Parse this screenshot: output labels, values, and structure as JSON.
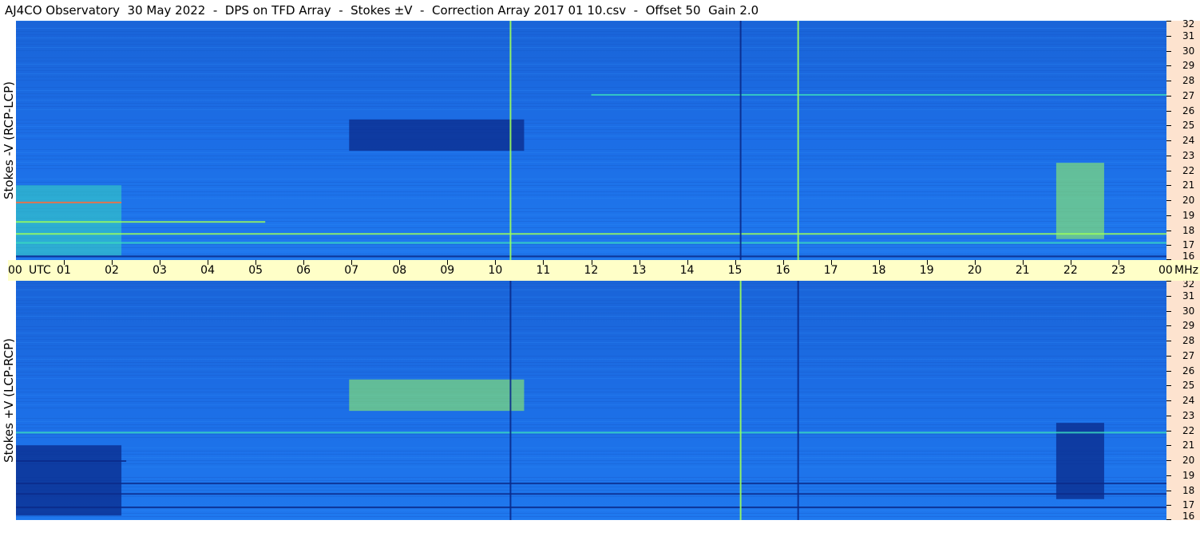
{
  "title": "AJ4CO Observatory  30 May 2022  -  DPS on TFD Array  -  Stokes ±V  -  Correction Array 2017 01 10.csv  -  Offset 50  Gain 2.0",
  "panels": {
    "top": {
      "ylabel": "Stokes -V (RCP-LCP)"
    },
    "bottom": {
      "ylabel": "Stokes +V (LCP-RCP)"
    }
  },
  "time_axis": {
    "start_label": "00",
    "utc_label": "UTC",
    "hour_labels": [
      "01",
      "02",
      "03",
      "04",
      "05",
      "06",
      "07",
      "08",
      "09",
      "10",
      "11",
      "12",
      "13",
      "14",
      "15",
      "16",
      "17",
      "18",
      "19",
      "20",
      "21",
      "22",
      "23"
    ],
    "end_label": "00",
    "unit_label": "MHz"
  },
  "colors": {
    "background": "#1c6ee6",
    "low": "#0a2a8a",
    "mid": "#1e90ff",
    "high": "#9cff5a",
    "peak": "#ff6a3a",
    "axis_time_bg": "#ffffc8",
    "axis_freq_bg": "#fde3cf"
  },
  "chart_data": [
    {
      "type": "heatmap",
      "name": "Stokes -V (RCP-LCP)",
      "x_range_utc_hours": [
        0,
        24
      ],
      "y_range_mhz": [
        16,
        32
      ],
      "yticks": [
        16,
        17,
        18,
        19,
        20,
        21,
        22,
        23,
        24,
        25,
        26,
        27,
        28,
        29,
        30,
        31,
        32
      ],
      "features": [
        {
          "kind": "block",
          "t0": 6.95,
          "t1": 10.6,
          "f0": 23.3,
          "f1": 25.4,
          "level": "low"
        },
        {
          "kind": "block",
          "t0": 0.0,
          "t1": 2.2,
          "f0": 16.3,
          "f1": 21.0,
          "level": "warm"
        },
        {
          "kind": "block",
          "t0": 21.7,
          "t1": 22.7,
          "f0": 17.4,
          "f1": 22.5,
          "level": "high"
        },
        {
          "kind": "band",
          "f": 17.8,
          "t0": 0.0,
          "t1": 24.0,
          "level": "high"
        },
        {
          "kind": "band",
          "f": 18.6,
          "t0": 0.0,
          "t1": 5.2,
          "level": "high"
        },
        {
          "kind": "band",
          "f": 17.2,
          "t0": 0.0,
          "t1": 24.0,
          "level": "warm"
        },
        {
          "kind": "band",
          "f": 16.3,
          "t0": 0.0,
          "t1": 24.0,
          "level": "low"
        },
        {
          "kind": "band",
          "f": 27.1,
          "t0": 12.0,
          "t1": 24.0,
          "level": "warm"
        },
        {
          "kind": "band",
          "f": 19.9,
          "t0": 0.0,
          "t1": 2.2,
          "level": "peak"
        },
        {
          "kind": "vline",
          "t": 10.3,
          "level": "high"
        },
        {
          "kind": "vline",
          "t": 15.1,
          "level": "low"
        },
        {
          "kind": "vline",
          "t": 16.3,
          "level": "high"
        }
      ]
    },
    {
      "type": "heatmap",
      "name": "Stokes +V (LCP-RCP)",
      "x_range_utc_hours": [
        0,
        24
      ],
      "y_range_mhz": [
        16,
        32
      ],
      "yticks": [
        16,
        17,
        18,
        19,
        20,
        21,
        22,
        23,
        24,
        25,
        26,
        27,
        28,
        29,
        30,
        31,
        32
      ],
      "features": [
        {
          "kind": "block",
          "t0": 6.95,
          "t1": 10.6,
          "f0": 23.3,
          "f1": 25.4,
          "level": "high"
        },
        {
          "kind": "block",
          "t0": 0.0,
          "t1": 2.2,
          "f0": 16.3,
          "f1": 21.0,
          "level": "low"
        },
        {
          "kind": "block",
          "t0": 21.7,
          "t1": 22.7,
          "f0": 17.4,
          "f1": 22.5,
          "level": "low"
        },
        {
          "kind": "band",
          "f": 17.8,
          "t0": 0.0,
          "t1": 24.0,
          "level": "low"
        },
        {
          "kind": "band",
          "f": 20.0,
          "t0": 0.0,
          "t1": 2.3,
          "level": "low"
        },
        {
          "kind": "band",
          "f": 18.5,
          "t0": 0.0,
          "t1": 24.0,
          "level": "low"
        },
        {
          "kind": "band",
          "f": 16.9,
          "t0": 0.0,
          "t1": 24.0,
          "level": "low"
        },
        {
          "kind": "band",
          "f": 21.9,
          "t0": 0.0,
          "t1": 24.0,
          "level": "warm"
        },
        {
          "kind": "vline",
          "t": 10.3,
          "level": "low"
        },
        {
          "kind": "vline",
          "t": 15.1,
          "level": "high"
        },
        {
          "kind": "vline",
          "t": 16.3,
          "level": "low"
        }
      ]
    }
  ]
}
